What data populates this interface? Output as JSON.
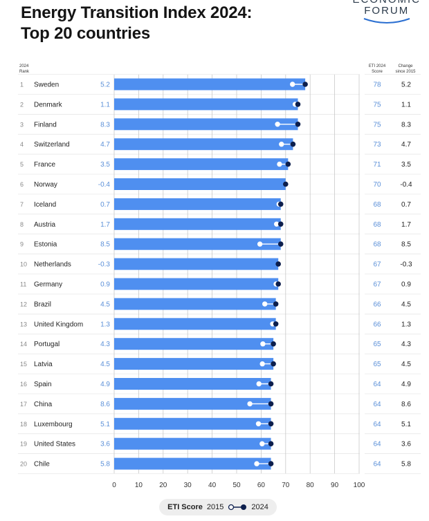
{
  "title_lines": [
    "Energy Transition Index 2024:",
    "Top 20 countries"
  ],
  "brand": {
    "line1": "ECONOMIC",
    "line2": "FORUM"
  },
  "headers": {
    "rank": [
      "2024",
      "Rank"
    ],
    "score": [
      "ETI 2024",
      "Score"
    ],
    "change": [
      "Change",
      "since 2015"
    ]
  },
  "legend": {
    "title": "ETI Score",
    "label_2015": "2015",
    "label_2024": "2024"
  },
  "colors": {
    "bar": "#4f8ff0",
    "dot": "#0d1f4d",
    "accent_text": "#5a8fd8",
    "grid": "#c8c8c8"
  },
  "chart_data": {
    "type": "bar",
    "orientation": "horizontal",
    "title": "Energy Transition Index 2024: Top 20 countries",
    "xlim": [
      0,
      100
    ],
    "x_ticks": [
      0,
      10,
      20,
      30,
      40,
      50,
      60,
      70,
      80,
      90,
      100
    ],
    "grid": true,
    "rows": [
      {
        "rank": "1",
        "country": "Sweden",
        "score_2024": 78,
        "change": "5.2",
        "score_2015": 72.8
      },
      {
        "rank": "2",
        "country": "Denmark",
        "score_2024": 75,
        "change": "1.1",
        "score_2015": 73.9
      },
      {
        "rank": "3",
        "country": "Finland",
        "score_2024": 75,
        "change": "8.3",
        "score_2015": 66.7
      },
      {
        "rank": "4",
        "country": "Switzerland",
        "score_2024": 73,
        "change": "4.7",
        "score_2015": 68.3
      },
      {
        "rank": "5",
        "country": "France",
        "score_2024": 71,
        "change": "3.5",
        "score_2015": 67.5
      },
      {
        "rank": "6",
        "country": "Norway",
        "score_2024": 70,
        "change": "-0.4",
        "score_2015": 70.4
      },
      {
        "rank": "7",
        "country": "Iceland",
        "score_2024": 68,
        "change": "0.7",
        "score_2015": 67.3
      },
      {
        "rank": "8",
        "country": "Austria",
        "score_2024": 68,
        "change": "1.7",
        "score_2015": 66.3
      },
      {
        "rank": "9",
        "country": "Estonia",
        "score_2024": 68,
        "change": "8.5",
        "score_2015": 59.5
      },
      {
        "rank": "10",
        "country": "Netherlands",
        "score_2024": 67,
        "change": "-0.3",
        "score_2015": 67.3
      },
      {
        "rank": "11",
        "country": "Germany",
        "score_2024": 67,
        "change": "0.9",
        "score_2015": 66.1
      },
      {
        "rank": "12",
        "country": "Brazil",
        "score_2024": 66,
        "change": "4.5",
        "score_2015": 61.5
      },
      {
        "rank": "13",
        "country": "United Kingdom",
        "score_2024": 66,
        "change": "1.3",
        "score_2015": 64.7
      },
      {
        "rank": "14",
        "country": "Portugal",
        "score_2024": 65,
        "change": "4.3",
        "score_2015": 60.7
      },
      {
        "rank": "15",
        "country": "Latvia",
        "score_2024": 65,
        "change": "4.5",
        "score_2015": 60.5
      },
      {
        "rank": "16",
        "country": "Spain",
        "score_2024": 64,
        "change": "4.9",
        "score_2015": 59.1
      },
      {
        "rank": "17",
        "country": "China",
        "score_2024": 64,
        "change": "8.6",
        "score_2015": 55.4
      },
      {
        "rank": "18",
        "country": "Luxembourg",
        "score_2024": 64,
        "change": "5.1",
        "score_2015": 58.9
      },
      {
        "rank": "19",
        "country": "United States",
        "score_2024": 64,
        "change": "3.6",
        "score_2015": 60.4
      },
      {
        "rank": "20",
        "country": "Chile",
        "score_2024": 64,
        "change": "5.8",
        "score_2015": 58.2
      }
    ]
  }
}
